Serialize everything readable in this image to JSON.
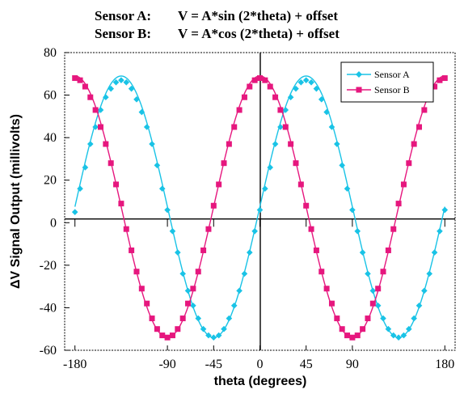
{
  "chart_data": {
    "type": "scatter",
    "title_lines": [
      {
        "sensor": "Sensor A:",
        "formula": "V = A*sin (2*theta) + offset"
      },
      {
        "sensor": "Sensor B:",
        "formula": "V = A*cos (2*theta) + offset"
      }
    ],
    "xlabel": "theta (degrees)",
    "ylabel": "ΔV Signal Output (millivolts)",
    "xlim": [
      -190,
      190
    ],
    "ylim": [
      -60,
      80
    ],
    "xticks": [
      -180,
      -90,
      -45,
      0,
      45,
      90,
      180
    ],
    "yticks": [
      80,
      60,
      40,
      20,
      0,
      -20,
      -40,
      -60
    ],
    "grid": false,
    "legend_position": "top-right",
    "colors": {
      "sensor_a": "#19c3e6",
      "sensor_b": "#e6177e"
    },
    "series": [
      {
        "name": "Sensor A",
        "marker": "diamond",
        "fit_line": true,
        "fit_model": {
          "amplitude": 61.5,
          "offset": 7.5,
          "function": "sin",
          "frequency": 2
        },
        "x": [
          -180,
          -175,
          -170,
          -165,
          -160,
          -155,
          -150,
          -145,
          -140,
          -135,
          -130,
          -125,
          -120,
          -115,
          -110,
          -105,
          -100,
          -95,
          -90,
          -85,
          -80,
          -75,
          -70,
          -65,
          -60,
          -55,
          -50,
          -45,
          -40,
          -35,
          -30,
          -25,
          -20,
          -15,
          -10,
          -5,
          0,
          5,
          10,
          15,
          20,
          25,
          30,
          35,
          40,
          45,
          50,
          55,
          60,
          65,
          70,
          75,
          80,
          85,
          90,
          95,
          100,
          105,
          110,
          115,
          120,
          125,
          130,
          135,
          140,
          145,
          150,
          155,
          160,
          165,
          170,
          175,
          180
        ],
        "values": [
          5,
          16,
          26,
          37,
          45,
          53,
          59,
          63,
          66,
          67,
          66,
          63,
          58,
          52,
          45,
          37,
          27,
          16,
          6,
          -4,
          -14,
          -24,
          -32,
          -39,
          -45,
          -50,
          -53,
          -54,
          -53,
          -50,
          -45,
          -39,
          -32,
          -24,
          -14,
          -4,
          6,
          16,
          26,
          37,
          45,
          53,
          59,
          63,
          66,
          67,
          66,
          63,
          58,
          52,
          45,
          37,
          27,
          16,
          6,
          -4,
          -14,
          -24,
          -32,
          -39,
          -45,
          -50,
          -53,
          -54,
          -53,
          -50,
          -45,
          -39,
          -32,
          -24,
          -14,
          -4,
          6
        ]
      },
      {
        "name": "Sensor B",
        "marker": "square",
        "fit_line": true,
        "fit_model": {
          "amplitude": 61.5,
          "offset": 7.5,
          "function": "cos",
          "frequency": 2
        },
        "x": [
          -180,
          -175,
          -170,
          -165,
          -160,
          -155,
          -150,
          -145,
          -140,
          -135,
          -130,
          -125,
          -120,
          -115,
          -110,
          -105,
          -100,
          -95,
          -90,
          -85,
          -80,
          -75,
          -70,
          -65,
          -60,
          -55,
          -50,
          -45,
          -40,
          -35,
          -30,
          -25,
          -20,
          -15,
          -10,
          -5,
          0,
          5,
          10,
          15,
          20,
          25,
          30,
          35,
          40,
          45,
          50,
          55,
          60,
          65,
          70,
          75,
          80,
          85,
          90,
          95,
          100,
          105,
          110,
          115,
          120,
          125,
          130,
          135,
          140,
          145,
          150,
          155,
          160,
          165,
          170,
          175,
          180
        ],
        "values": [
          68,
          67,
          64,
          59,
          53,
          45,
          37,
          28,
          18,
          9,
          -3,
          -13,
          -23,
          -31,
          -38,
          -45,
          -50,
          -53,
          -54,
          -53,
          -50,
          -45,
          -38,
          -31,
          -23,
          -13,
          -3,
          8,
          18,
          28,
          37,
          45,
          53,
          59,
          64,
          67,
          68,
          67,
          64,
          59,
          53,
          45,
          37,
          28,
          18,
          8,
          -3,
          -13,
          -23,
          -31,
          -38,
          -45,
          -50,
          -53,
          -54,
          -53,
          -50,
          -45,
          -38,
          -31,
          -23,
          -13,
          -3,
          9,
          18,
          28,
          37,
          45,
          53,
          59,
          64,
          67,
          68
        ]
      }
    ]
  }
}
